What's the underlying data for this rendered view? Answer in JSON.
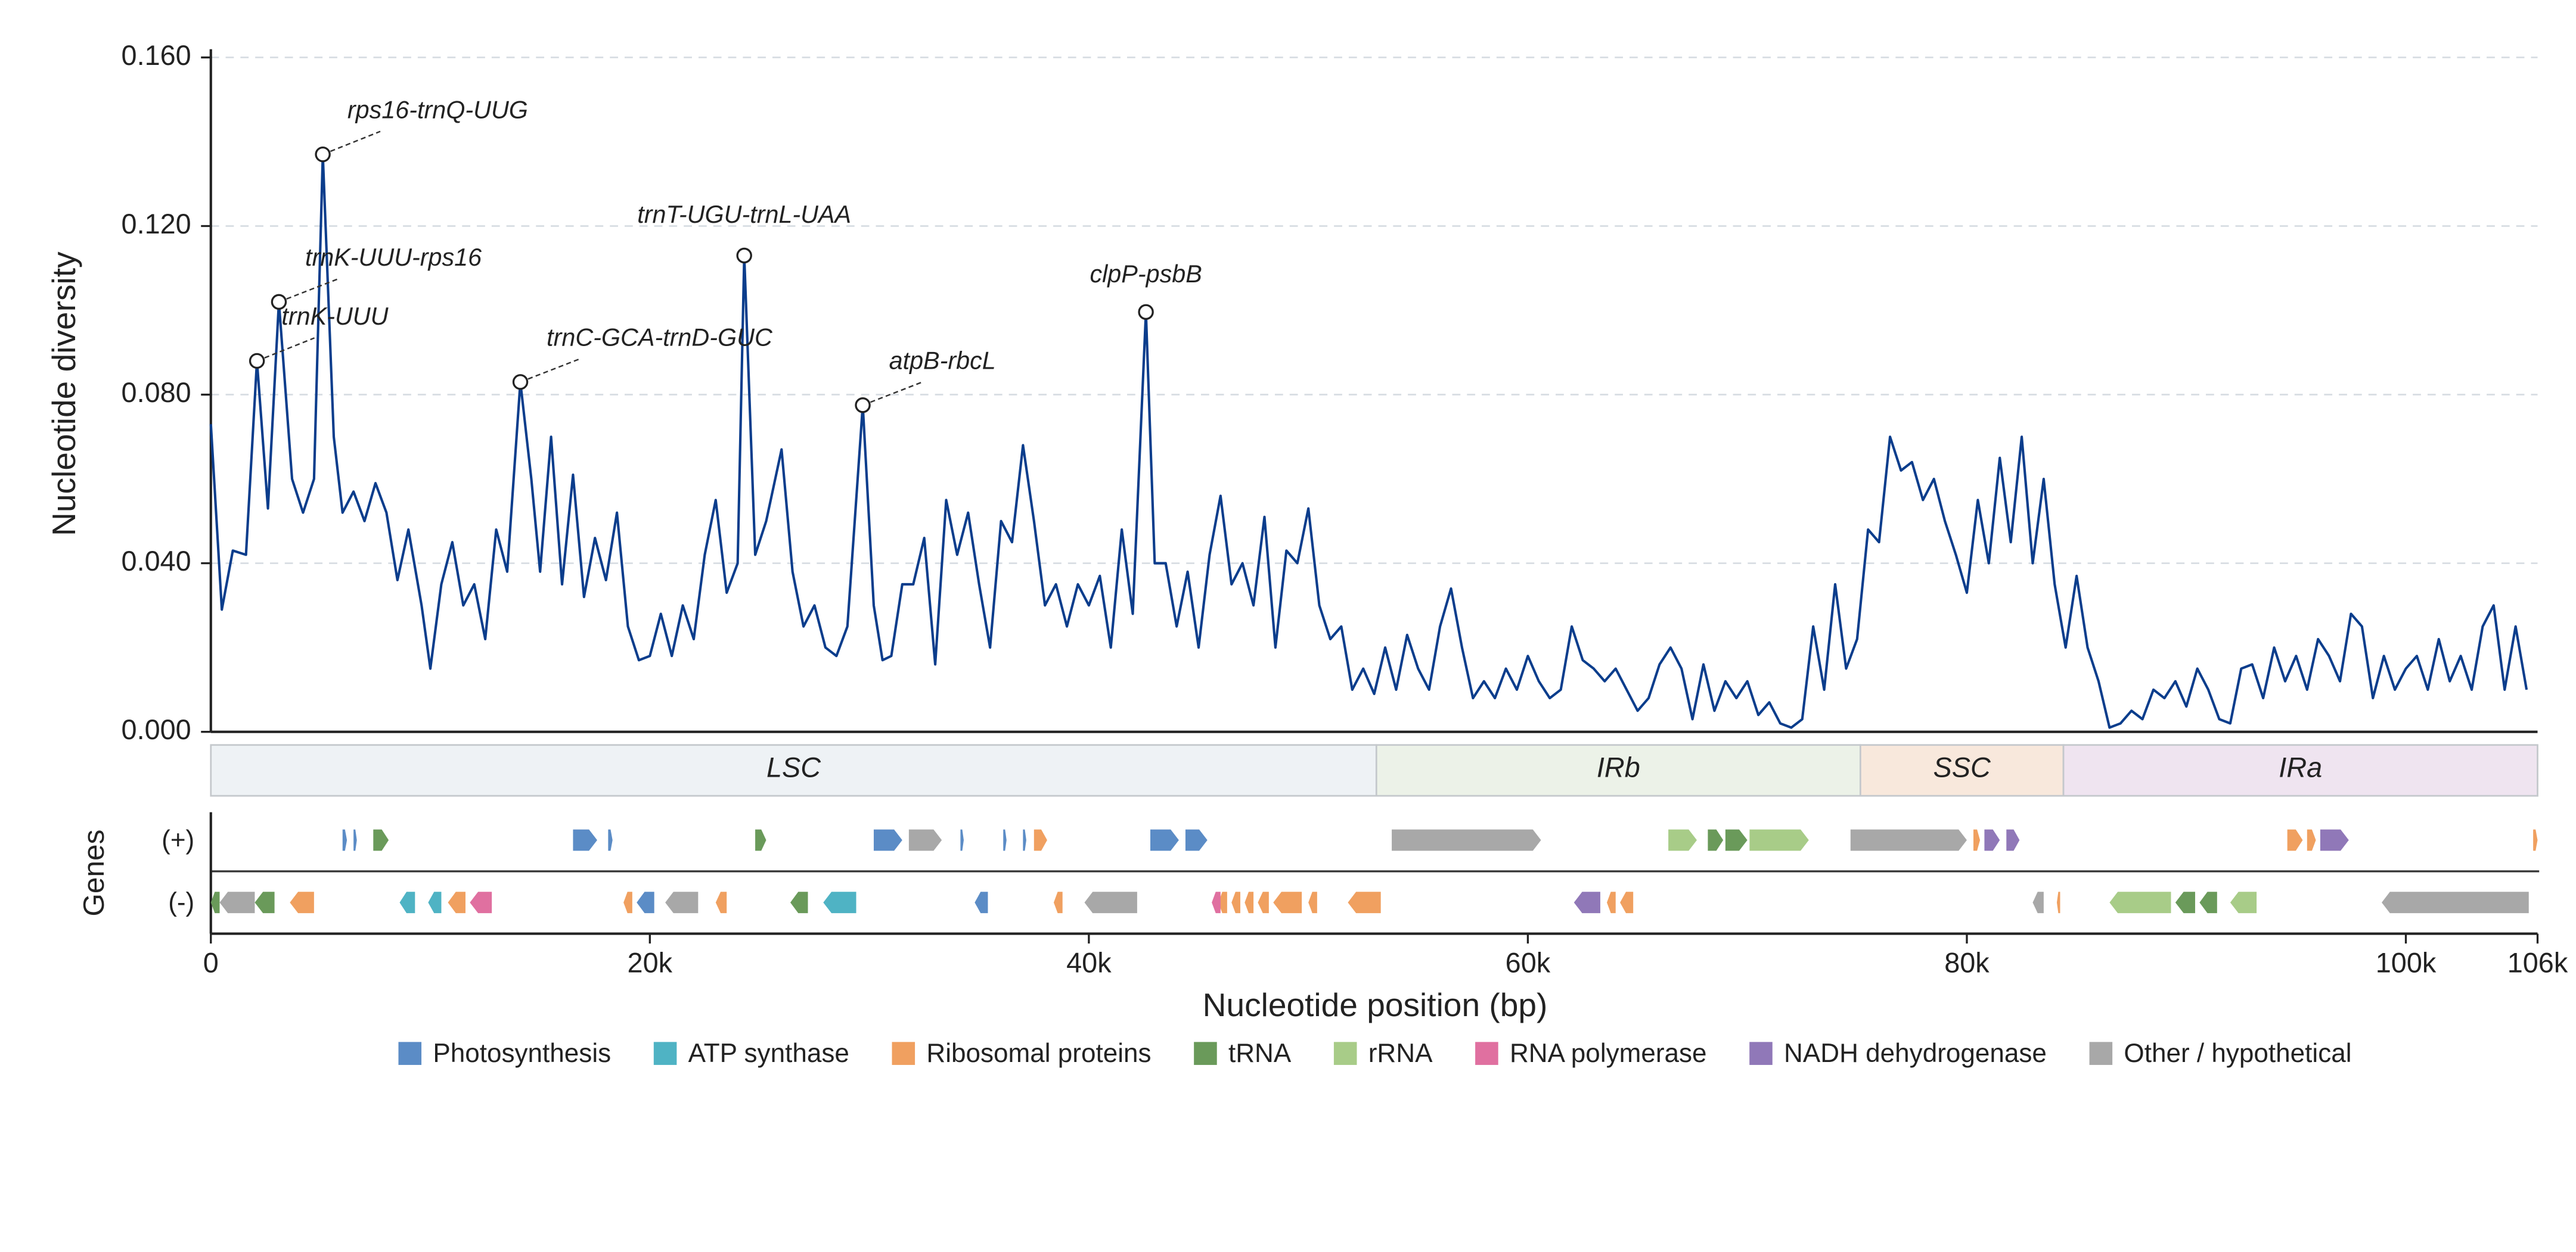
{
  "chart_data": {
    "type": "line",
    "y_label": "Nucleotide diversity",
    "x_label": "Nucleotide position (bp)",
    "track_label": "Genes",
    "plus_label": "(+)",
    "minus_label": "(-)",
    "xlim": [
      0,
      106000
    ],
    "ylim": [
      0,
      0.16
    ],
    "xticks": [
      0,
      {
        "value": 20000,
        "label": "20k"
      },
      {
        "value": 40000,
        "label": "40k"
      },
      {
        "value": 60000,
        "label": "60k"
      },
      {
        "value": 80000,
        "label": "80k"
      },
      {
        "value": 100000,
        "label": "100k"
      },
      {
        "value": 106000,
        "label": "106k"
      }
    ],
    "yticks": [
      {
        "value": 0,
        "label": "0.000"
      },
      {
        "value": 0.04,
        "label": "0.040"
      },
      {
        "value": 0.08,
        "label": "0.080"
      },
      {
        "value": 0.12,
        "label": "0.120"
      },
      {
        "value": 0.16,
        "label": "0.160"
      }
    ],
    "grid": true,
    "x": [
      0,
      500,
      1000,
      1600,
      2100,
      2600,
      3100,
      3700,
      4200,
      4700,
      5100,
      5600,
      6000,
      6500,
      7000,
      7500,
      8000,
      8500,
      9000,
      9600,
      10000,
      10500,
      11000,
      11500,
      12000,
      12500,
      13000,
      13500,
      14100,
      14600,
      15000,
      15500,
      16000,
      16500,
      17000,
      17500,
      18000,
      18500,
      19000,
      19500,
      20000,
      20500,
      21000,
      21500,
      22000,
      22500,
      23000,
      23500,
      24000,
      24300,
      24800,
      25300,
      26000,
      26500,
      27000,
      27500,
      28000,
      28500,
      29000,
      29700,
      30200,
      30600,
      31000,
      31500,
      32000,
      32500,
      33000,
      33500,
      34000,
      34500,
      35000,
      35500,
      36000,
      36500,
      37000,
      37500,
      38000,
      38500,
      39000,
      39500,
      40000,
      40500,
      41000,
      41500,
      42000,
      42600,
      43000,
      43500,
      44000,
      44500,
      45000,
      45500,
      46000,
      46500,
      47000,
      47500,
      48000,
      48500,
      49000,
      49500,
      50000,
      50500,
      51000,
      51500,
      52000,
      52500,
      53000,
      53500,
      54000,
      54500,
      55000,
      55500,
      56000,
      56500,
      57000,
      57500,
      58000,
      58500,
      59000,
      59500,
      60000,
      60500,
      61000,
      61500,
      62000,
      62500,
      63000,
      63500,
      64000,
      64500,
      65000,
      65500,
      66000,
      66500,
      67000,
      67500,
      68000,
      68500,
      69000,
      69500,
      70000,
      70500,
      71000,
      71500,
      72000,
      72500,
      73000,
      73500,
      74000,
      74500,
      75000,
      75500,
      76000,
      76500,
      77000,
      77500,
      78000,
      78500,
      79000,
      79500,
      80000,
      80500,
      81000,
      81500,
      82000,
      82500,
      83000,
      83500,
      84000,
      84500,
      85000,
      85500,
      86000,
      86500,
      87000,
      87500,
      88000,
      88500,
      89000,
      89500,
      90000,
      90500,
      91000,
      91500,
      92000,
      92500,
      93000,
      93500,
      94000,
      94500,
      95000,
      95500,
      96000,
      96500,
      97000,
      97500,
      98000,
      98500,
      99000,
      99500,
      100000,
      100500,
      101000,
      101500,
      102000,
      102500,
      103000,
      103500,
      104000,
      104500,
      105000,
      105500
    ],
    "series": [
      {
        "name": "Nucleotide diversity",
        "color": "#0b3d8c",
        "values": [
          0.073,
          0.029,
          0.043,
          0.042,
          0.088,
          0.053,
          0.102,
          0.06,
          0.052,
          0.06,
          0.137,
          0.07,
          0.052,
          0.057,
          0.05,
          0.059,
          0.052,
          0.036,
          0.048,
          0.03,
          0.015,
          0.035,
          0.045,
          0.03,
          0.035,
          0.022,
          0.048,
          0.038,
          0.083,
          0.06,
          0.038,
          0.07,
          0.035,
          0.061,
          0.032,
          0.046,
          0.036,
          0.052,
          0.025,
          0.017,
          0.018,
          0.028,
          0.018,
          0.03,
          0.022,
          0.042,
          0.055,
          0.033,
          0.04,
          0.113,
          0.042,
          0.05,
          0.067,
          0.038,
          0.025,
          0.03,
          0.02,
          0.018,
          0.025,
          0.0775,
          0.03,
          0.017,
          0.018,
          0.035,
          0.035,
          0.046,
          0.016,
          0.055,
          0.042,
          0.052,
          0.035,
          0.02,
          0.05,
          0.045,
          0.068,
          0.05,
          0.03,
          0.035,
          0.025,
          0.035,
          0.03,
          0.037,
          0.02,
          0.048,
          0.028,
          0.0996,
          0.04,
          0.04,
          0.025,
          0.038,
          0.02,
          0.042,
          0.056,
          0.035,
          0.04,
          0.03,
          0.051,
          0.02,
          0.043,
          0.04,
          0.053,
          0.03,
          0.022,
          0.025,
          0.01,
          0.015,
          0.009,
          0.02,
          0.01,
          0.023,
          0.015,
          0.01,
          0.025,
          0.034,
          0.02,
          0.008,
          0.012,
          0.008,
          0.015,
          0.01,
          0.018,
          0.012,
          0.008,
          0.01,
          0.025,
          0.017,
          0.015,
          0.012,
          0.015,
          0.01,
          0.005,
          0.008,
          0.016,
          0.02,
          0.015,
          0.003,
          0.016,
          0.005,
          0.012,
          0.008,
          0.012,
          0.004,
          0.007,
          0.002,
          0.001,
          0.003,
          0.025,
          0.01,
          0.035,
          0.015,
          0.022,
          0.048,
          0.045,
          0.07,
          0.062,
          0.064,
          0.055,
          0.06,
          0.05,
          0.042,
          0.033,
          0.055,
          0.04,
          0.065,
          0.045,
          0.07,
          0.04,
          0.06,
          0.035,
          0.02,
          0.037,
          0.02,
          0.012,
          0.001,
          0.002,
          0.005,
          0.003,
          0.01,
          0.008,
          0.012,
          0.006,
          0.015,
          0.01,
          0.003,
          0.002,
          0.015,
          0.016,
          0.008,
          0.02,
          0.012,
          0.018,
          0.01,
          0.022,
          0.018,
          0.012,
          0.028,
          0.025,
          0.008,
          0.018,
          0.01,
          0.015,
          0.018,
          0.01,
          0.022,
          0.012,
          0.018,
          0.01,
          0.025,
          0.03,
          0.01,
          0.025,
          0.01
        ]
      }
    ],
    "annotations": [
      {
        "text": "rps16-trnQ-UUG",
        "x": 5100,
        "y": 0.137
      },
      {
        "text": "trnK-UUU-rps16",
        "x": 3100,
        "y": 0.102
      },
      {
        "text": "trnK-UUU",
        "x": 2100,
        "y": 0.088
      },
      {
        "text": "trnC-GCA-trnD-GUC",
        "x": 14100,
        "y": 0.083
      },
      {
        "text": "trnT-UGU-trnL-UAA",
        "x": 24300,
        "y": 0.113
      },
      {
        "text": "atpB-rbcL",
        "x": 29700,
        "y": 0.0775
      },
      {
        "text": "clpP-psbB",
        "x": 42600,
        "y": 0.0996
      }
    ],
    "regions": [
      {
        "name": "LSC",
        "start": 0,
        "end": 53100,
        "color": "#eef2f5"
      },
      {
        "name": "IRb",
        "start": 53100,
        "end": 75150,
        "color": "#ecf2e8"
      },
      {
        "name": "SSC",
        "start": 75150,
        "end": 84400,
        "color": "#f8e8dc"
      },
      {
        "name": "IRa",
        "start": 84400,
        "end": 106000,
        "color": "#efe4f0"
      }
    ],
    "gene_groups": [
      {
        "name": "Photosynthesis",
        "color": "#5b8cc6",
        "plus": [
          [
            6000,
            6200
          ],
          [
            6500,
            6650
          ],
          [
            16500,
            17600
          ],
          [
            18100,
            18300
          ],
          [
            30200,
            31500
          ],
          [
            34150,
            34300
          ],
          [
            36100,
            36250
          ],
          [
            37000,
            37150
          ],
          [
            42800,
            44100
          ],
          [
            44400,
            45400
          ]
        ],
        "minus": [
          [
            19400,
            20200
          ],
          [
            34800,
            35400
          ]
        ]
      },
      {
        "name": "ATP synthase",
        "color": "#4fb3c4",
        "plus": [],
        "minus": [
          [
            8600,
            9300
          ],
          [
            9900,
            10500
          ],
          [
            27900,
            29400
          ]
        ]
      },
      {
        "name": "Ribosomal proteins",
        "color": "#f0a060",
        "plus": [
          [
            37500,
            38100
          ],
          [
            80300,
            80600
          ],
          [
            94600,
            95300
          ],
          [
            95500,
            95900
          ],
          [
            105800,
            106000
          ]
        ],
        "minus": [
          [
            3600,
            4700
          ],
          [
            10800,
            11600
          ],
          [
            18800,
            19200
          ],
          [
            23000,
            23500
          ],
          [
            38400,
            38800
          ],
          [
            45900,
            46300
          ],
          [
            46500,
            46900
          ],
          [
            47100,
            47500
          ],
          [
            47700,
            48200
          ],
          [
            48400,
            49700
          ],
          [
            50000,
            50400
          ],
          [
            51800,
            53300
          ],
          [
            63600,
            64000
          ],
          [
            64200,
            64800
          ],
          [
            84100,
            84250
          ]
        ]
      },
      {
        "name": "tRNA",
        "color": "#6a9a5a",
        "plus": [
          [
            7400,
            8100
          ],
          [
            24800,
            25300
          ],
          [
            68200,
            68900
          ],
          [
            69000,
            70000
          ]
        ],
        "minus": [
          [
            0,
            400
          ],
          [
            2000,
            2900
          ],
          [
            26400,
            27200
          ],
          [
            89500,
            90400
          ],
          [
            90600,
            91400
          ]
        ]
      },
      {
        "name": "rRNA",
        "color": "#a8cc88",
        "plus": [
          [
            66400,
            67700
          ],
          [
            70100,
            72800
          ]
        ],
        "minus": [
          [
            86500,
            89300
          ],
          [
            92000,
            93200
          ]
        ]
      },
      {
        "name": "RNA polymerase",
        "color": "#e070a0",
        "plus": [],
        "minus": [
          [
            11800,
            12800
          ],
          [
            45600,
            46000
          ]
        ]
      },
      {
        "name": "NADH dehydrogenase",
        "color": "#9078b8",
        "plus": [
          [
            80800,
            81500
          ],
          [
            81800,
            82400
          ],
          [
            96100,
            97400
          ]
        ],
        "minus": [
          [
            62100,
            63300
          ]
        ]
      },
      {
        "name": "Other / hypothetical",
        "color": "#a8a8a8",
        "plus": [
          [
            31800,
            33300
          ],
          [
            53800,
            60600
          ],
          [
            74700,
            80000
          ]
        ],
        "minus": [
          [
            400,
            2000
          ],
          [
            20700,
            22200
          ],
          [
            39800,
            42200
          ],
          [
            83000,
            83500
          ],
          [
            98900,
            105600
          ]
        ]
      }
    ]
  }
}
